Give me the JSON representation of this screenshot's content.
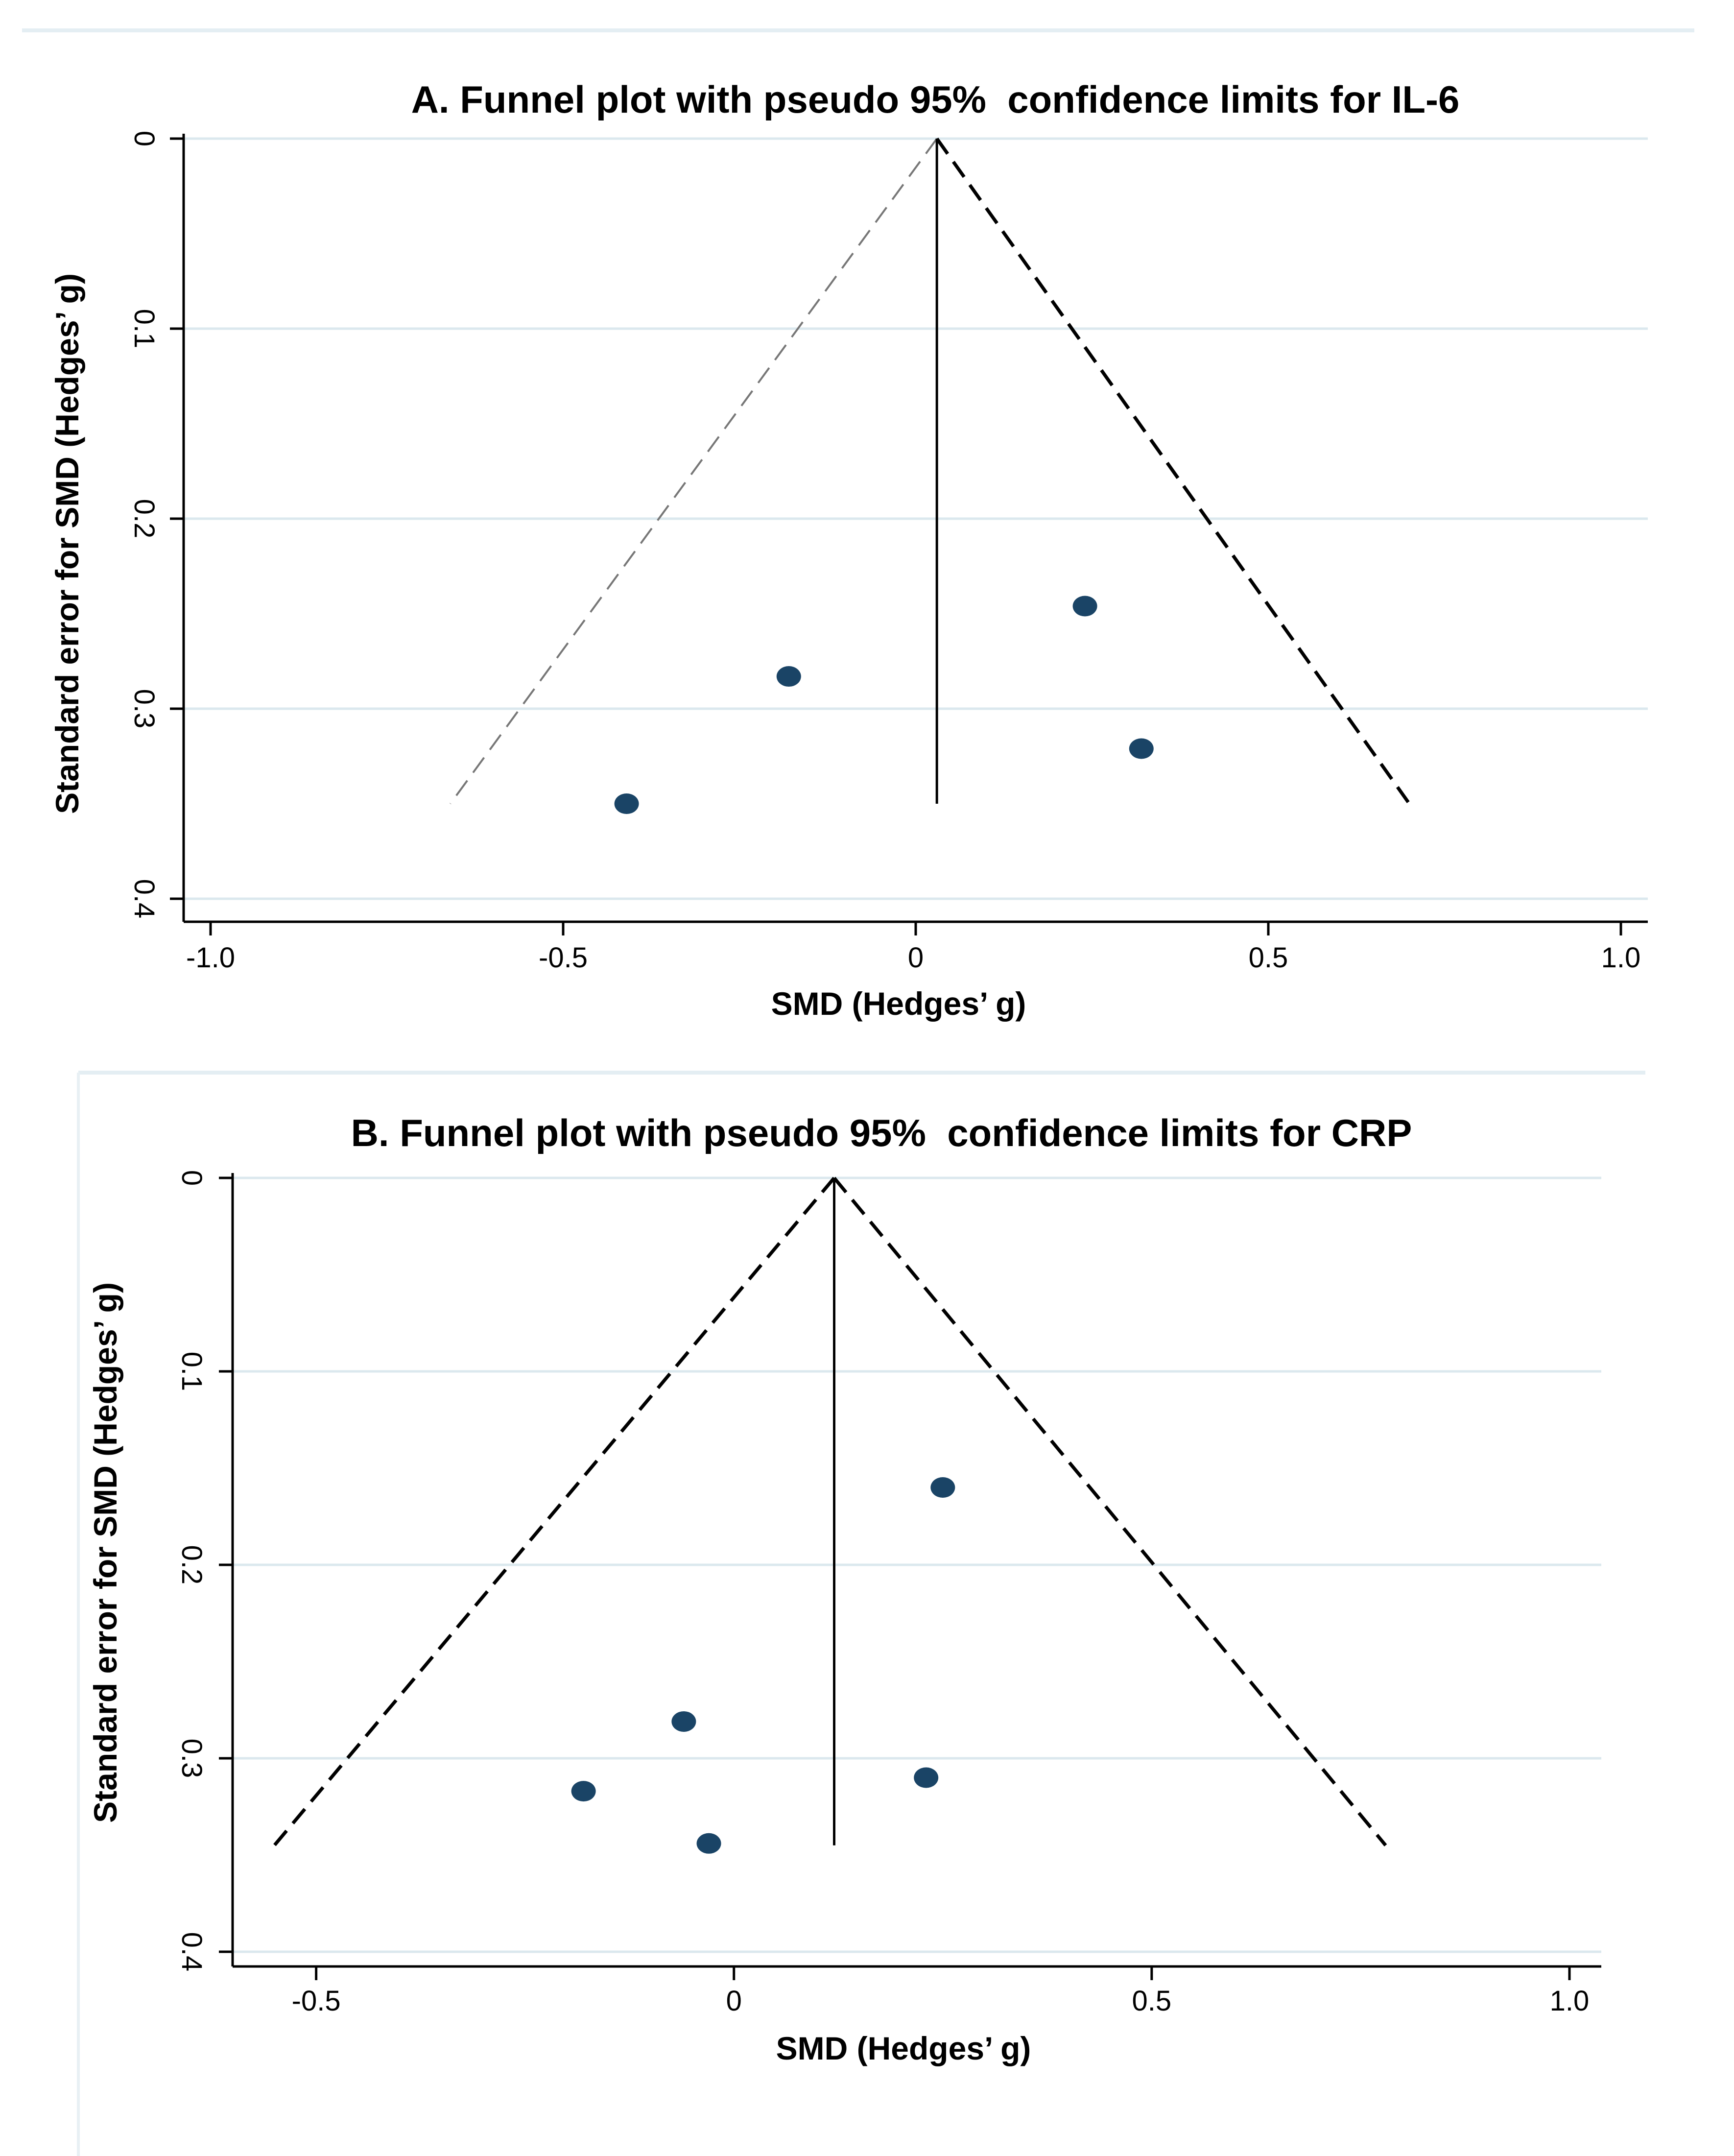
{
  "chart_data": [
    {
      "type": "scatter",
      "title": "A. Funnel plot with pseudo 95%  confidence limits for IL-6",
      "xlabel": "SMD (Hedges’ g)",
      "ylabel": "Standard error for SMD (Hedges’ g)",
      "xlim": [
        -1.0,
        1.0
      ],
      "ylim": [
        0,
        0.4
      ],
      "y_reversed": true,
      "grid": "horizontal",
      "x_ticks": [
        -1.0,
        -0.5,
        0,
        0.5,
        1.0
      ],
      "x_tick_labels": [
        "-1.0",
        "-0.5",
        "0",
        "0.5",
        "1.0"
      ],
      "y_ticks": [
        0,
        0.1,
        0.2,
        0.3,
        0.4
      ],
      "y_tick_labels": [
        "0",
        "0.1",
        "0.2",
        "0.3",
        "0.4"
      ],
      "pooled_effect": 0.03,
      "funnel_max_se": 0.35,
      "funnel_left_bottom": -0.66,
      "funnel_right_bottom": 0.7,
      "points": [
        {
          "x": -0.41,
          "y": 0.35
        },
        {
          "x": -0.18,
          "y": 0.283
        },
        {
          "x": 0.24,
          "y": 0.246
        },
        {
          "x": 0.32,
          "y": 0.321
        }
      ],
      "colors": {
        "point": "#1a4466",
        "grid": "#dbe8ee",
        "line": "#000000",
        "funnel_left": "#777777",
        "funnel_right": "#000000"
      }
    },
    {
      "type": "scatter",
      "title": "B. Funnel plot with pseudo 95%  confidence limits for CRP",
      "xlabel": "SMD (Hedges’ g)",
      "ylabel": "Standard error for SMD (Hedges’ g)",
      "xlim": [
        -0.6,
        1.0
      ],
      "ylim": [
        0,
        0.4
      ],
      "y_reversed": true,
      "grid": "horizontal",
      "x_ticks": [
        -0.5,
        0,
        0.5,
        1.0
      ],
      "x_tick_labels": [
        "-0.5",
        "0",
        "0.5",
        "1.0"
      ],
      "y_ticks": [
        0,
        0.1,
        0.2,
        0.3,
        0.4
      ],
      "y_tick_labels": [
        "0",
        "0.1",
        "0.2",
        "0.3",
        "0.4"
      ],
      "pooled_effect": 0.12,
      "funnel_max_se": 0.345,
      "funnel_left_bottom": -0.55,
      "funnel_right_bottom": 0.78,
      "points": [
        {
          "x": 0.25,
          "y": 0.16
        },
        {
          "x": -0.06,
          "y": 0.281
        },
        {
          "x": 0.23,
          "y": 0.31
        },
        {
          "x": -0.18,
          "y": 0.317
        },
        {
          "x": -0.03,
          "y": 0.344
        }
      ],
      "colors": {
        "point": "#1a4466",
        "grid": "#dbe8ee",
        "line": "#000000",
        "funnel_left": "#000000",
        "funnel_right": "#000000"
      }
    }
  ]
}
